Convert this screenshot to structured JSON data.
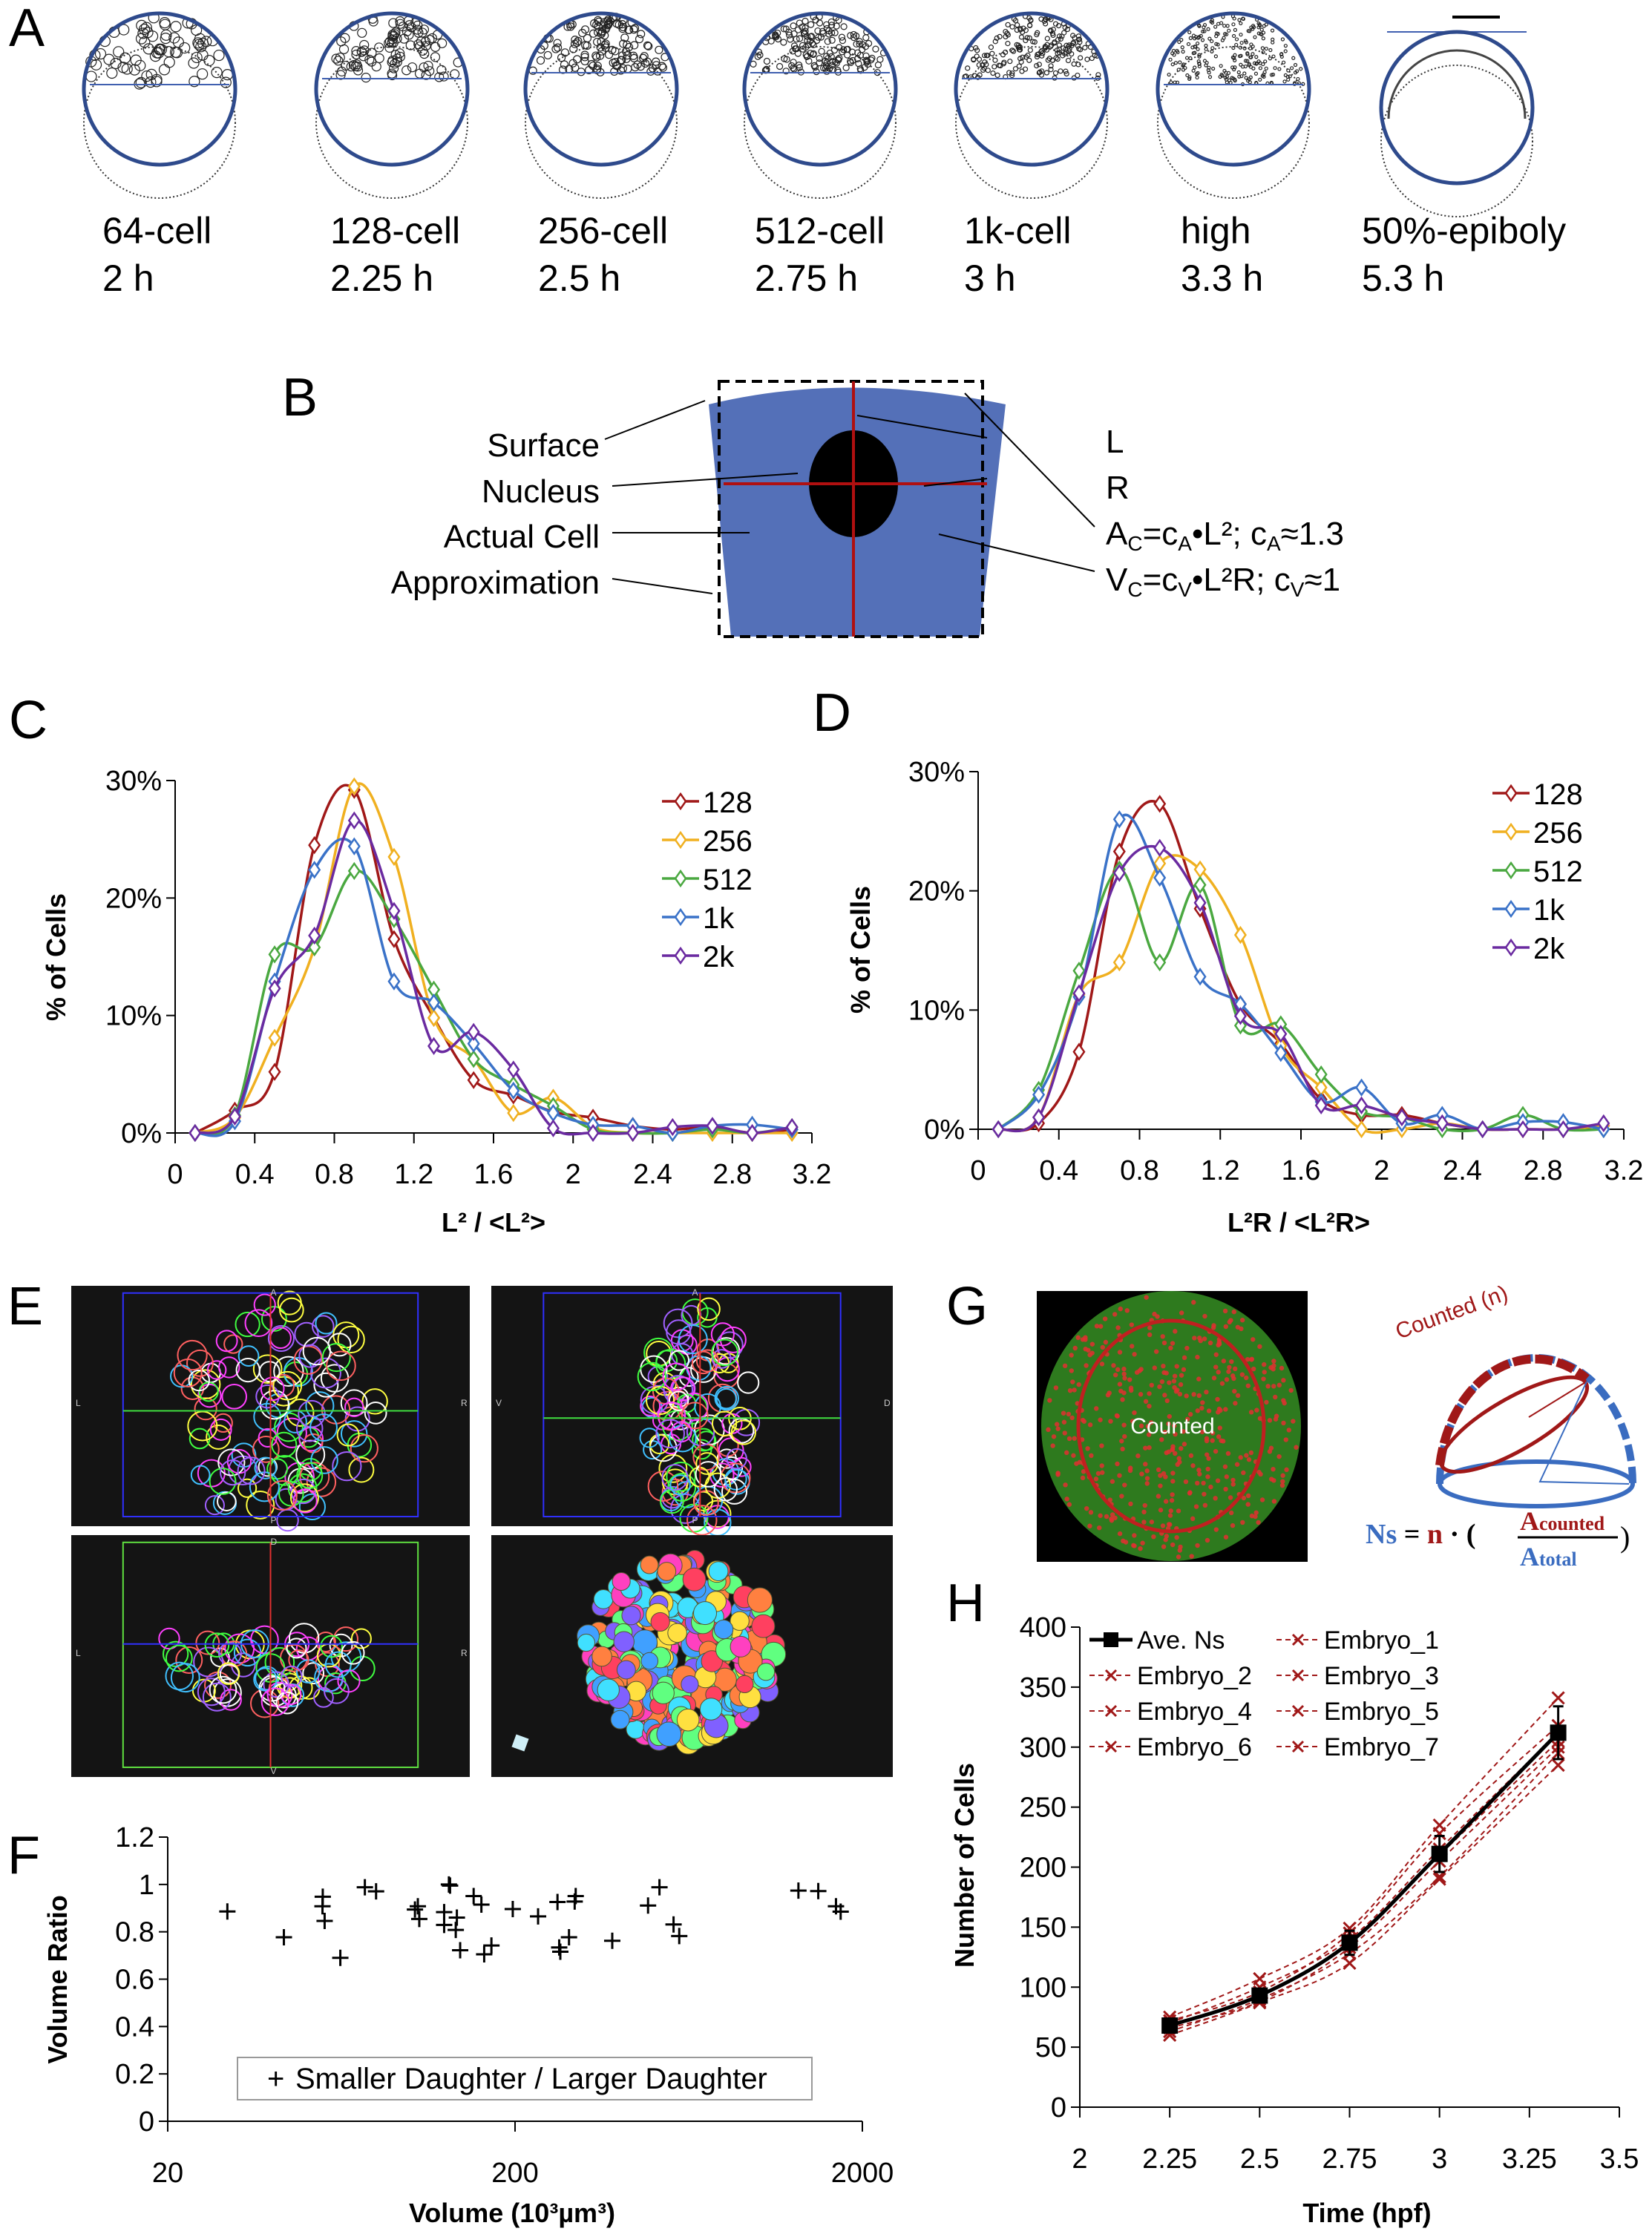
{
  "panels": {
    "a": "A",
    "b": "B",
    "c": "C",
    "d": "D",
    "e": "E",
    "f": "F",
    "g": "G",
    "h": "H"
  },
  "panel_a": {
    "stages": [
      {
        "name": "64-cell",
        "time": "2 h"
      },
      {
        "name": "128-cell",
        "time": "2.25 h"
      },
      {
        "name": "256-cell",
        "time": "2.5 h"
      },
      {
        "name": "512-cell",
        "time": "2.75 h"
      },
      {
        "name": "1k-cell",
        "time": "3 h"
      },
      {
        "name": "high",
        "time": "3.3 h"
      },
      {
        "name": "50%-epiboly",
        "time": "5.3 h"
      }
    ],
    "outline_color": "#2e4a8c"
  },
  "panel_b": {
    "left_labels": [
      "Surface",
      "Nucleus",
      "Actual Cell",
      "Approximation"
    ],
    "right_labels": [
      "L",
      "R"
    ],
    "area_formula": {
      "a": "A",
      "s1": "C",
      "b": "=c",
      "s2": "A",
      "c": "•L²; c",
      "s3": "A",
      "d": "≈1.3"
    },
    "volume_formula": {
      "a": "V",
      "s1": "C",
      "b": "=c",
      "s2": "V",
      "c": "•L²R; c",
      "s3": "V",
      "d": "≈1"
    },
    "cell_color": "#5470b8",
    "axis_color": "#b01010"
  },
  "panel_e": {
    "views": [
      {
        "top": "A",
        "bottom": "P",
        "left": "L",
        "right": "R"
      },
      {
        "top": "A",
        "bottom": "P",
        "left": "V",
        "right": "D"
      },
      {
        "top": "D",
        "bottom": "V",
        "left": "L",
        "right": "R"
      }
    ]
  },
  "panel_g": {
    "image_label": "Counted",
    "arc_label": "Counted (n)",
    "formula": {
      "ns": "Ns",
      "eq": " = ",
      "n": "n",
      "dot": " · (",
      "num": "A",
      "num_sub": "counted",
      "den": "A",
      "den_sub": "total",
      "close": ")"
    },
    "counted_color": "#a01818",
    "total_color": "#3a6cc0"
  },
  "chart_data": [
    {
      "id": "C",
      "type": "line",
      "xlabel": "L² / <L²>",
      "ylabel": "% of Cells",
      "xlim": [
        0,
        3.2
      ],
      "ylim": [
        0,
        30
      ],
      "xticks": [
        "0",
        "0.4",
        "0.8",
        "1.2",
        "1.6",
        "2",
        "2.4",
        "2.8",
        "3.2"
      ],
      "yticks": [
        "0%",
        "10%",
        "20%",
        "30%"
      ],
      "legend": "top-right",
      "x": [
        0.1,
        0.3,
        0.5,
        0.7,
        0.9,
        1.1,
        1.3,
        1.5,
        1.7,
        1.9,
        2.1,
        2.3,
        2.5,
        2.7,
        2.9,
        3.1
      ],
      "series": [
        {
          "name": "128",
          "color": "#a01818",
          "values": [
            0,
            1.9,
            5.2,
            24.5,
            29.2,
            16.5,
            9.8,
            4.5,
            3.2,
            1.8,
            1.3,
            0.6,
            0.3,
            0.5,
            0,
            0.3
          ]
        },
        {
          "name": "256",
          "color": "#f0b020",
          "values": [
            0,
            1.3,
            8.1,
            15.8,
            29.5,
            23.5,
            9.8,
            6.3,
            1.7,
            3.0,
            0.5,
            0,
            0,
            0,
            0,
            0
          ]
        },
        {
          "name": "512",
          "color": "#4aa840",
          "values": [
            0,
            1.5,
            15.2,
            15.8,
            22.3,
            18.2,
            12.2,
            6.3,
            4.1,
            2.3,
            0.3,
            0,
            0,
            0.3,
            0,
            0.5
          ]
        },
        {
          "name": "1k",
          "color": "#3a72c8",
          "values": [
            0,
            1.0,
            12.9,
            22.4,
            24.4,
            12.9,
            11.1,
            7.6,
            3.6,
            1.7,
            0.7,
            0.6,
            0,
            0.6,
            0.7,
            0.3
          ]
        },
        {
          "name": "2k",
          "color": "#6a2aa0",
          "values": [
            0,
            1.4,
            12.3,
            16.8,
            26.6,
            18.9,
            7.4,
            8.6,
            5.4,
            0.4,
            0,
            0,
            0.5,
            0.6,
            0,
            0.5
          ]
        }
      ]
    },
    {
      "id": "D",
      "type": "line",
      "xlabel": "L²R / <L²R>",
      "ylabel": "% of Cells",
      "xlim": [
        0,
        3.2
      ],
      "ylim": [
        0,
        30
      ],
      "xticks": [
        "0",
        "0.4",
        "0.8",
        "1.2",
        "1.6",
        "2",
        "2.4",
        "2.8",
        "3.2"
      ],
      "yticks": [
        "0%",
        "10%",
        "20%",
        "30%"
      ],
      "legend": "top-right",
      "x": [
        0.1,
        0.3,
        0.5,
        0.7,
        0.9,
        1.1,
        1.3,
        1.5,
        1.7,
        1.9,
        2.1,
        2.3,
        2.5,
        2.7,
        2.9,
        3.1
      ],
      "series": [
        {
          "name": "128",
          "color": "#a01818",
          "values": [
            0,
            0.5,
            6.5,
            23.3,
            27.3,
            18.5,
            10.5,
            7.2,
            2.5,
            1.2,
            1.2,
            0.5,
            0,
            0,
            0,
            0.3
          ]
        },
        {
          "name": "256",
          "color": "#f0b020",
          "values": [
            0,
            1.0,
            11.3,
            14.0,
            22.3,
            21.8,
            16.3,
            7.0,
            3.5,
            0,
            0,
            0.5,
            0,
            0,
            0,
            0.3
          ]
        },
        {
          "name": "512",
          "color": "#4aa840",
          "values": [
            0,
            3.3,
            13.3,
            21.8,
            14.0,
            20.5,
            8.7,
            8.8,
            4.6,
            1.5,
            1.0,
            0,
            0,
            1.2,
            0,
            0
          ]
        },
        {
          "name": "1k",
          "color": "#3a72c8",
          "values": [
            0,
            2.9,
            11.1,
            26.0,
            21.1,
            12.8,
            10.5,
            6.4,
            2.3,
            3.5,
            0.5,
            1.2,
            0,
            0.6,
            0.6,
            0
          ]
        },
        {
          "name": "2k",
          "color": "#6a2aa0",
          "values": [
            0,
            1.0,
            11.4,
            21.5,
            23.6,
            19.0,
            9.5,
            8.0,
            2.0,
            2.0,
            1.0,
            0.5,
            0,
            0,
            0,
            0.5
          ]
        }
      ]
    },
    {
      "id": "F",
      "type": "scatter",
      "xlabel": "Volume (10³µm³)",
      "ylabel": "Volume Ratio",
      "xscale": "log",
      "xlim": [
        20,
        2000
      ],
      "ylim": [
        0,
        1.2
      ],
      "xticks": [
        "20",
        "200",
        "2000"
      ],
      "yticks": [
        "0",
        "0.2",
        "0.4",
        "0.6",
        "0.8",
        "1",
        "1.2"
      ],
      "legend": "bottom-center",
      "series": [
        {
          "name": "Smaller Daughter / Larger Daughter",
          "marker": "+",
          "points": [
            [
              29.7,
              0.886
            ],
            [
              43.2,
              0.777
            ],
            [
              55.8,
              0.908
            ],
            [
              55.9,
              0.948
            ],
            [
              56.6,
              0.846
            ],
            [
              62.8,
              0.69
            ],
            [
              73.9,
              0.988
            ],
            [
              79.6,
              0.971
            ],
            [
              103,
              0.894
            ],
            [
              105,
              0.908
            ],
            [
              106,
              0.854
            ],
            [
              125,
              0.883
            ],
            [
              125,
              0.829
            ],
            [
              129,
              1.0
            ],
            [
              130,
              0.995
            ],
            [
              135,
              0.808
            ],
            [
              136,
              0.86
            ],
            [
              139,
              0.722
            ],
            [
              152,
              0.951
            ],
            [
              160,
              0.915
            ],
            [
              163,
              0.705
            ],
            [
              171,
              0.742
            ],
            [
              197,
              0.896
            ],
            [
              233,
              0.865
            ],
            [
              265,
              0.926
            ],
            [
              268,
              0.734
            ],
            [
              270,
              0.716
            ],
            [
              286,
              0.777
            ],
            [
              297,
              0.928
            ],
            [
              299,
              0.951
            ],
            [
              381,
              0.762
            ],
            [
              483,
              0.911
            ],
            [
              521,
              0.988
            ],
            [
              572,
              0.831
            ],
            [
              594,
              0.782
            ],
            [
              1309,
              0.974
            ],
            [
              1493,
              0.972
            ],
            [
              1679,
              0.908
            ],
            [
              1732,
              0.885
            ]
          ]
        }
      ]
    },
    {
      "id": "H",
      "type": "line",
      "xlabel": "Time (hpf)",
      "ylabel": "Number of Cells",
      "xlim": [
        2,
        3.5
      ],
      "ylim": [
        0,
        400
      ],
      "xticks": [
        "2",
        "2.25",
        "2.5",
        "2.75",
        "3",
        "3.25",
        "3.5"
      ],
      "yticks": [
        "0",
        "50",
        "100",
        "150",
        "200",
        "250",
        "300",
        "350",
        "400"
      ],
      "legend": "top-left",
      "x": [
        2.25,
        2.5,
        2.75,
        3,
        3.33
      ],
      "series": [
        {
          "name": "Ave. Ns",
          "color": "#000000",
          "style": "solid",
          "marker": "square",
          "values": [
            68,
            93,
            137,
            211,
            312
          ],
          "error": [
            5,
            5,
            10,
            15,
            22
          ]
        },
        {
          "name": "Embryo_1",
          "color": "#a01818",
          "style": "dashed",
          "marker": "x",
          "values": [
            72,
            96,
            145,
            228,
            318
          ]
        },
        {
          "name": "Embryo_2",
          "color": "#a01818",
          "style": "dashed",
          "marker": "x",
          "values": [
            66,
            88,
            133,
            205,
            300
          ]
        },
        {
          "name": "Embryo_3",
          "color": "#a01818",
          "style": "dashed",
          "marker": "x",
          "values": [
            75,
            107,
            149,
            235,
            341
          ]
        },
        {
          "name": "Embryo_4",
          "color": "#a01818",
          "style": "dashed",
          "marker": "x",
          "values": [
            63,
            90,
            128,
            192,
            295
          ]
        },
        {
          "name": "Embryo_5",
          "color": "#a01818",
          "style": "dashed",
          "marker": "x",
          "values": [
            70,
            100,
            140,
            215,
            312
          ]
        },
        {
          "name": "Embryo_6",
          "color": "#a01818",
          "style": "dashed",
          "marker": "x",
          "values": [
            60,
            87,
            120,
            190,
            285
          ]
        },
        {
          "name": "Embryo_7",
          "color": "#a01818",
          "style": "dashed",
          "marker": "x",
          "values": [
            68,
            93,
            137,
            210,
            305
          ]
        }
      ]
    }
  ]
}
